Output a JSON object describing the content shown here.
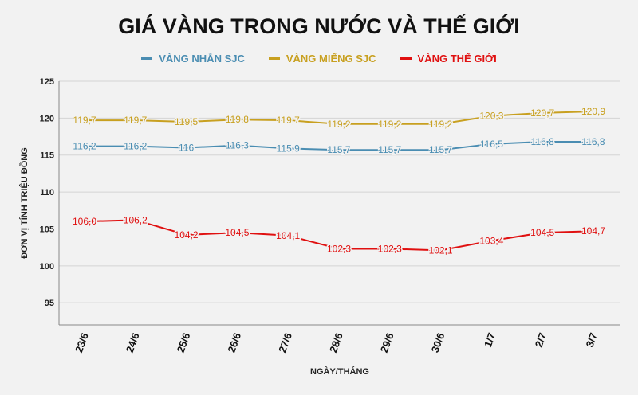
{
  "chart_data": {
    "type": "line",
    "title": "GIÁ VÀNG TRONG NƯỚC VÀ THẾ GIỚI",
    "xlabel": "NGÀY/THÁNG",
    "ylabel": "ĐƠN VỊ TÍNH TRIỆU ĐỒNG",
    "ylim": [
      92,
      125
    ],
    "yticks": [
      95,
      100,
      105,
      110,
      115,
      120,
      125
    ],
    "grid": true,
    "legend_position": "top-center",
    "categories": [
      "23/6",
      "24/6",
      "25/6",
      "26/6",
      "27/6",
      "28/6",
      "29/6",
      "30/6",
      "1/7",
      "2/7",
      "3/7"
    ],
    "series": [
      {
        "name": "VÀNG NHẪN SJC",
        "color": "#4a8db2",
        "values": [
          116.2,
          116.2,
          116,
          116.3,
          115.9,
          115.7,
          115.7,
          115.7,
          116.5,
          116.8,
          116.8
        ],
        "labels": [
          "116,2",
          "116,2",
          "116",
          "116,3",
          "115,9",
          "115,7",
          "115,7",
          "115,7",
          "116,5",
          "116,8",
          "116,8"
        ]
      },
      {
        "name": "VÀNG MIẾNG SJC",
        "color": "#c8a020",
        "values": [
          119.7,
          119.7,
          119.5,
          119.8,
          119.7,
          119.2,
          119.2,
          119.2,
          120.3,
          120.7,
          120.9
        ],
        "labels": [
          "119,7",
          "119,7",
          "119,5",
          "119,8",
          "119,7",
          "119,2",
          "119,2",
          "119,2",
          "120,3",
          "120,7",
          "120,9"
        ]
      },
      {
        "name": "VÀNG THẾ GIỚI",
        "color": "#e01010",
        "values": [
          106.0,
          106.2,
          104.2,
          104.5,
          104.1,
          102.3,
          102.3,
          102.1,
          103.4,
          104.5,
          104.7
        ],
        "labels": [
          "106,0",
          "106,2",
          "104,2",
          "104,5",
          "104,1",
          "102,3",
          "102,3",
          "102,1",
          "103,4",
          "104,5",
          "104,7"
        ]
      }
    ]
  }
}
